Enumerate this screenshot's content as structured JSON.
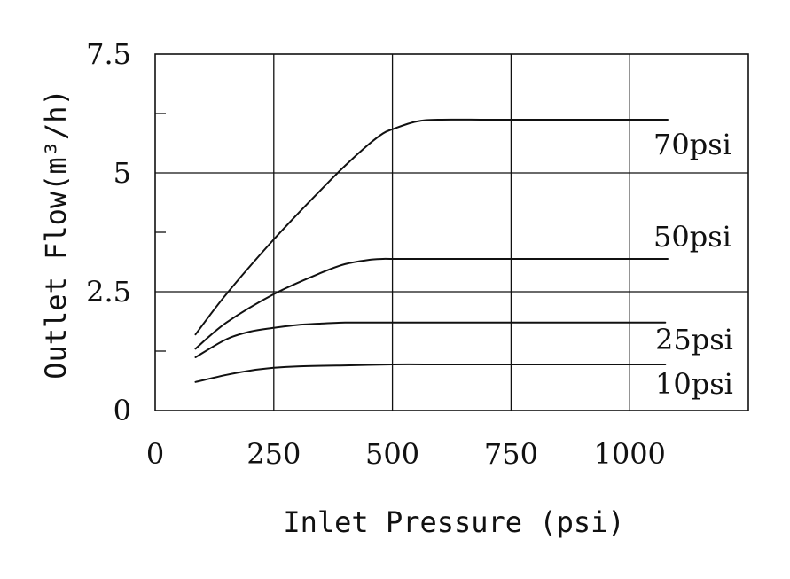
{
  "chart_data": {
    "type": "line",
    "title": "",
    "xlabel": "Inlet Pressure (psi)",
    "ylabel": "Outlet Flow(m³/h)",
    "xlim": [
      0,
      1250
    ],
    "ylim": [
      0,
      7.5
    ],
    "xticks": [
      0,
      250,
      500,
      750,
      1000
    ],
    "xtick_labels": [
      "0",
      "250",
      "500",
      "750",
      "1000"
    ],
    "yticks": [
      0,
      2.5,
      5,
      7.5
    ],
    "ytick_labels": [
      "0",
      "2.5",
      "5",
      "7.5"
    ],
    "y_minor_ticks": [
      1.25,
      3.75,
      6.25
    ],
    "grid": true,
    "series": [
      {
        "name": "70psi",
        "x": [
          85,
          150,
          250,
          350,
          400,
          450,
          480,
          500,
          550,
          600,
          700,
          800,
          900,
          1000,
          1080
        ],
        "y": [
          1.6,
          2.45,
          3.6,
          4.65,
          5.15,
          5.6,
          5.83,
          5.92,
          6.08,
          6.12,
          6.12,
          6.12,
          6.12,
          6.12,
          6.12
        ]
      },
      {
        "name": "50psi",
        "x": [
          85,
          150,
          250,
          350,
          400,
          450,
          480,
          500,
          600,
          700,
          800,
          900,
          1000,
          1080
        ],
        "y": [
          1.3,
          1.85,
          2.45,
          2.9,
          3.08,
          3.17,
          3.19,
          3.19,
          3.19,
          3.19,
          3.19,
          3.19,
          3.19,
          3.19
        ]
      },
      {
        "name": "25psi",
        "x": [
          85,
          150,
          200,
          250,
          300,
          350,
          400,
          500,
          600,
          700,
          800,
          900,
          1000,
          1075
        ],
        "y": [
          1.12,
          1.5,
          1.66,
          1.74,
          1.8,
          1.83,
          1.85,
          1.85,
          1.85,
          1.85,
          1.85,
          1.85,
          1.85,
          1.85
        ]
      },
      {
        "name": "10psi",
        "x": [
          85,
          150,
          200,
          250,
          300,
          400,
          500,
          600,
          700,
          800,
          900,
          1000,
          1075
        ],
        "y": [
          0.6,
          0.75,
          0.84,
          0.9,
          0.93,
          0.95,
          0.97,
          0.97,
          0.97,
          0.97,
          0.97,
          0.97,
          0.97
        ]
      }
    ]
  }
}
